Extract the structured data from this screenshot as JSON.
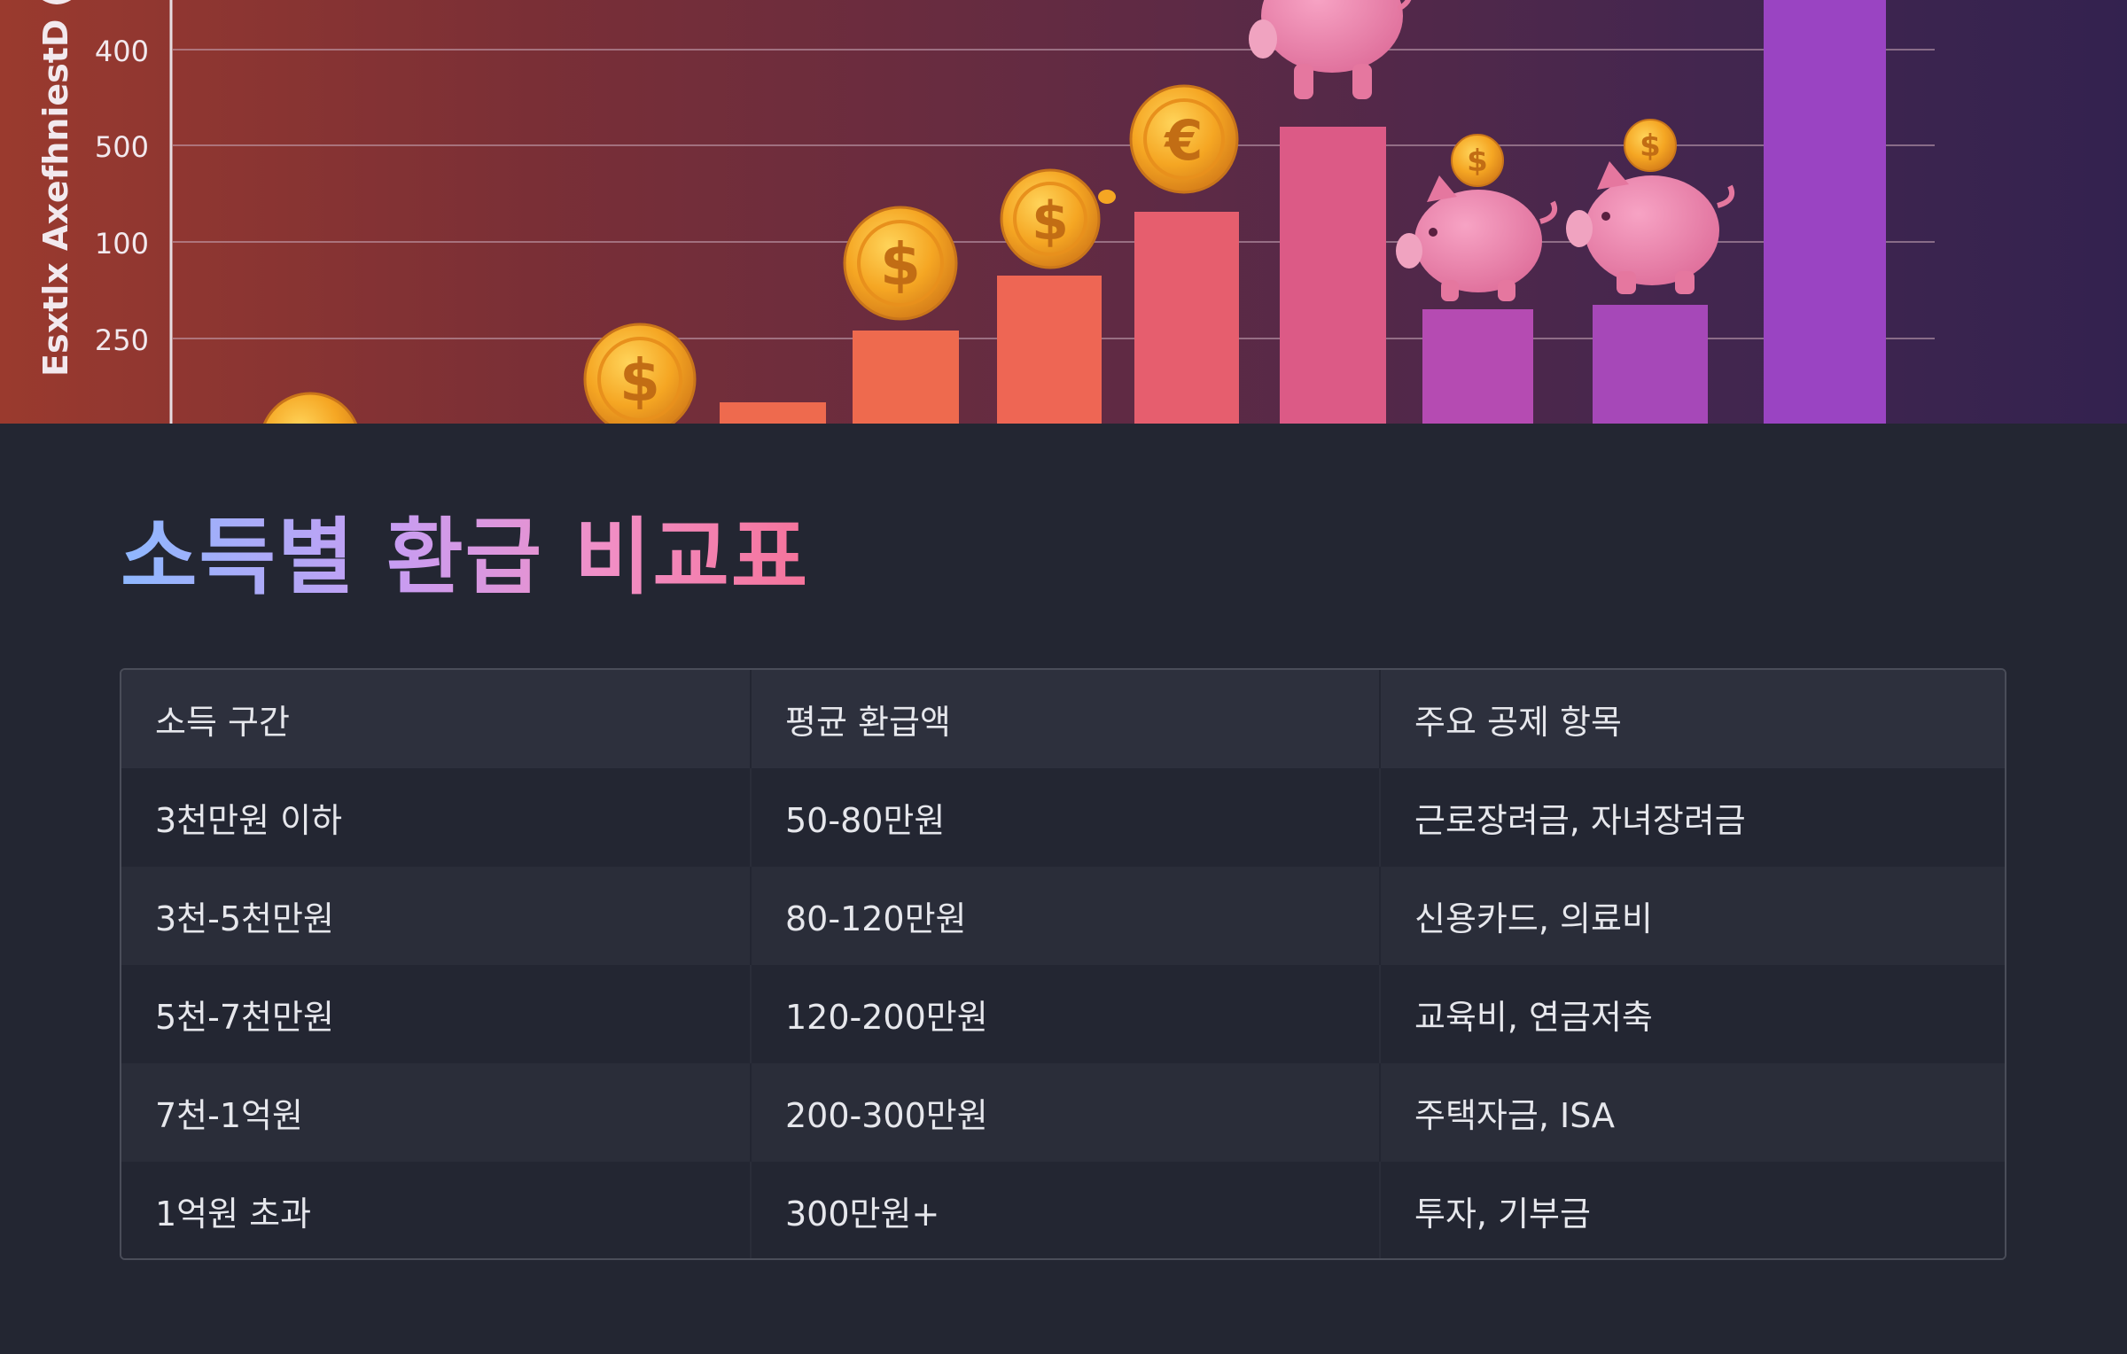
{
  "hero_chart": {
    "axis_label": "Esxtlx AxefhniestD (",
    "ticks": [
      "400",
      "500",
      "100",
      "250"
    ],
    "bars": [
      {
        "value": 0.05,
        "color": "#ee6a4e"
      },
      {
        "value": 0.22,
        "color": "#ee6a4e"
      },
      {
        "value": 0.35,
        "color": "#ee6654"
      },
      {
        "value": 0.5,
        "color": "#e65e6e"
      },
      {
        "value": 0.7,
        "color": "#dc5a86"
      },
      {
        "value": 0.27,
        "color": "#b54bb2"
      },
      {
        "value": 0.28,
        "color": "#a648b8"
      },
      {
        "value": 1.0,
        "color": "#9a44c2"
      }
    ],
    "coin_symbols": [
      "$",
      "$",
      "$",
      "€",
      "$",
      "$",
      "$"
    ]
  },
  "section": {
    "title": "소득별 환급 비교표"
  },
  "table": {
    "headers": [
      "소득 구간",
      "평균 환급액",
      "주요 공제 항목"
    ],
    "rows": [
      [
        "3천만원 이하",
        "50-80만원",
        "근로장려금, 자녀장려금"
      ],
      [
        "3천-5천만원",
        "80-120만원",
        "신용카드, 의료비"
      ],
      [
        "5천-7천만원",
        "120-200만원",
        "교육비, 연금저축"
      ],
      [
        "7천-1억원",
        "200-300만원",
        "주택자금, ISA"
      ],
      [
        "1억원 초과",
        "300만원+",
        "투자, 기부금"
      ]
    ]
  }
}
